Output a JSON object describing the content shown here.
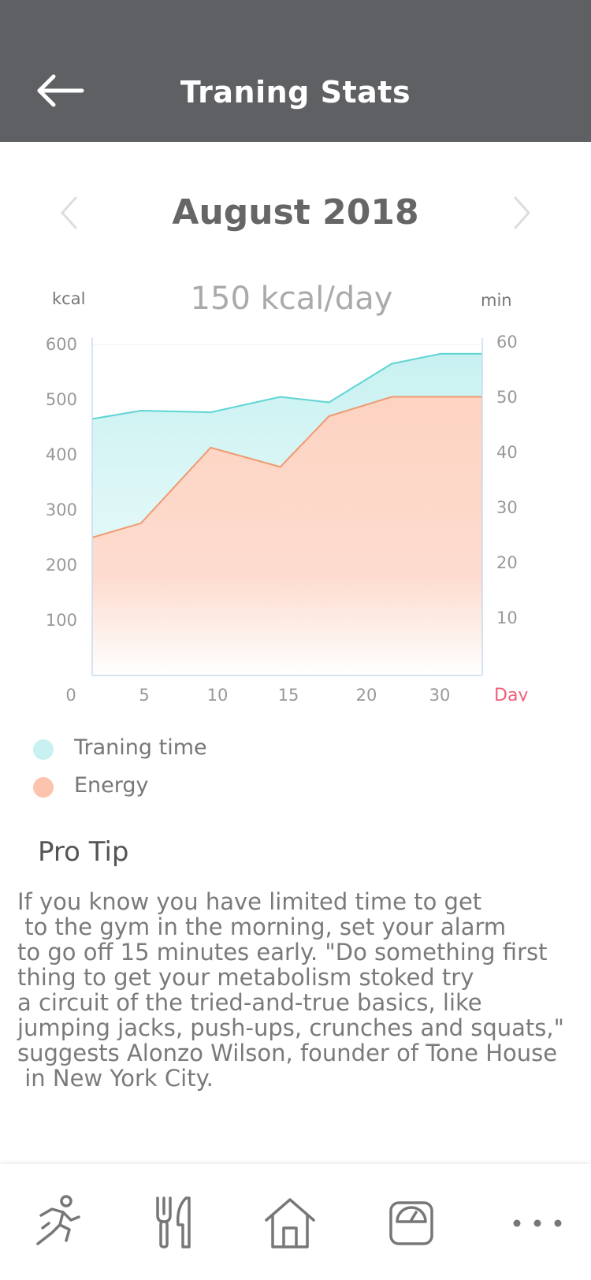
{
  "header": {
    "title": "Traning Stats"
  },
  "month": {
    "label": "August 2018"
  },
  "daily_value": "150 kcal/day",
  "chart_data": {
    "type": "area",
    "title": "",
    "y_left_label": "kcal",
    "y_right_label": "min",
    "x_label": "Day",
    "x_ticks": [
      "0",
      "5",
      "10",
      "15",
      "20",
      "30"
    ],
    "y_left_ticks": [
      "600",
      "500",
      "400",
      "300",
      "200",
      "100"
    ],
    "y_right_ticks": [
      "60",
      "50",
      "40",
      "30",
      "20",
      "10"
    ],
    "y_left_range": [
      0,
      600
    ],
    "y_right_range": [
      0,
      60
    ],
    "series": [
      {
        "name": "Traning time",
        "axis": "right",
        "color": "#5fd4d4",
        "fill": "#c9f1f1",
        "x": [
          0,
          3.5,
          8.5,
          13.5,
          17,
          21.5,
          25,
          28
        ],
        "values": [
          46.5,
          48,
          47.7,
          50.5,
          49.5,
          56.5,
          58.3,
          58.3
        ]
      },
      {
        "name": "Energy",
        "axis": "left",
        "color": "#ef9a72",
        "fill": "#fdd9cb",
        "x": [
          0,
          3.5,
          8.5,
          13.5,
          17,
          21.5,
          25,
          28
        ],
        "values": [
          250,
          276,
          413,
          378,
          470,
          505,
          505,
          505
        ]
      }
    ]
  },
  "legend": [
    {
      "label": "Traning time",
      "color": "#c9f1f1"
    },
    {
      "label": "Energy",
      "color": "#fdc4ad"
    }
  ],
  "tip": {
    "title": "Pro Tip",
    "text": "If you know you have limited time to get\n to the gym in the morning, set your alarm\nto go off 15 minutes early. \"Do something first\nthing to get your metabolism stoked try\na circuit of the tried-and-true basics, like\njumping jacks, push-ups, crunches and squats,\"\nsuggests Alonzo Wilson, founder of Tone House\n in New York City."
  },
  "tabs": [
    {
      "icon": "running-icon"
    },
    {
      "icon": "fork-knife-icon"
    },
    {
      "icon": "home-icon"
    },
    {
      "icon": "scale-icon"
    },
    {
      "icon": "more-icon"
    }
  ],
  "colors": {
    "header_bg": "#5f6063",
    "accent_red": "#f0607a"
  }
}
